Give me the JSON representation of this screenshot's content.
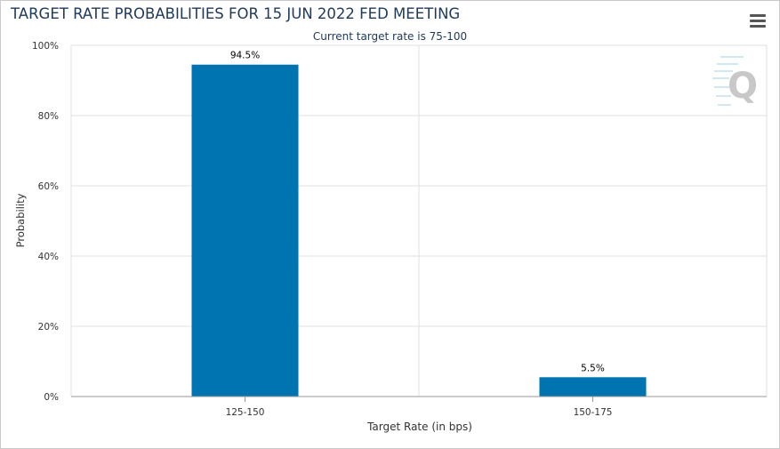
{
  "title": "TARGET RATE PROBABILITIES FOR 15 JUN 2022 FED MEETING",
  "subtitle": "Current target rate is 75-100",
  "menu_icon": "hamburger-menu-icon",
  "watermark_icon": "q-logo-icon",
  "colors": {
    "bar": "#0074b0",
    "title": "#203a5c",
    "grid": "#e0e0e0",
    "watermark": "#c8c8c8"
  },
  "chart_data": {
    "type": "bar",
    "title": "TARGET RATE PROBABILITIES FOR 15 JUN 2022 FED MEETING",
    "subtitle": "Current target rate is 75-100",
    "categories": [
      "125-150",
      "150-175"
    ],
    "values": [
      94.5,
      5.5
    ],
    "data_labels": [
      "94.5%",
      "5.5%"
    ],
    "xlabel": "Target Rate (in bps)",
    "ylabel": "Probability",
    "ylim": [
      0,
      100
    ],
    "yticks": [
      0,
      20,
      40,
      60,
      80,
      100
    ],
    "ytick_labels": [
      "0%",
      "20%",
      "40%",
      "60%",
      "80%",
      "100%"
    ],
    "grid": true,
    "legend": "none"
  }
}
